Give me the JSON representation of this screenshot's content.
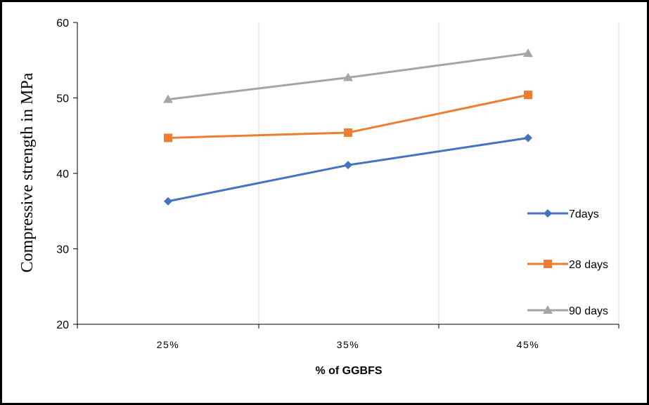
{
  "chart_data": {
    "type": "line",
    "title": "",
    "xlabel": "% of GGBFS",
    "ylabel": "Compressive strength in MPa",
    "categories": [
      "25%",
      "35%",
      "45%"
    ],
    "ylim": [
      20,
      60
    ],
    "yticks": [
      20,
      30,
      40,
      50,
      60
    ],
    "grid": "vertical",
    "legend": "right",
    "series": [
      {
        "name": "7days",
        "values": [
          36.3,
          41.1,
          44.7
        ],
        "color": "#4472C4",
        "marker": "diamond"
      },
      {
        "name": "28 days",
        "values": [
          44.7,
          45.4,
          50.4
        ],
        "color": "#ED7D31",
        "marker": "square"
      },
      {
        "name": "90 days",
        "values": [
          49.8,
          52.7,
          55.9
        ],
        "color": "#A5A5A5",
        "marker": "triangle"
      }
    ]
  }
}
